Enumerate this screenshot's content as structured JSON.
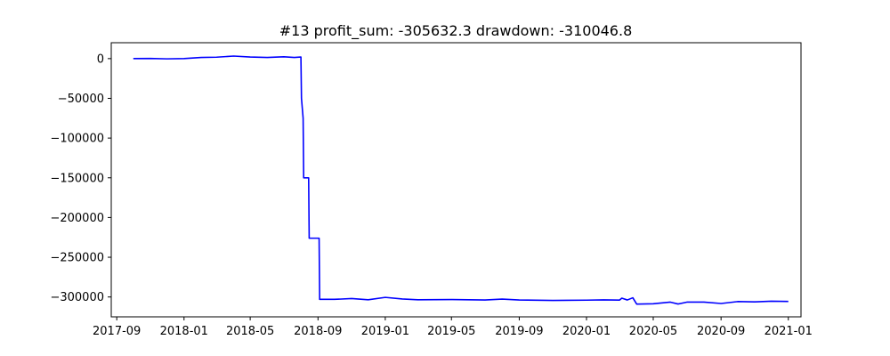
{
  "chart_data": {
    "type": "line",
    "title": "#13   profit_sum: -305632.3 drawdown: -310046.8",
    "xlabel": "",
    "ylabel": "",
    "x_axis": "date",
    "xlim": [
      "2017-08-22",
      "2021-01-24"
    ],
    "ylim": [
      -325000,
      20000
    ],
    "x_ticks": [
      {
        "date": "2017-09-01",
        "label": "2017-09"
      },
      {
        "date": "2018-01-01",
        "label": "2018-01"
      },
      {
        "date": "2018-05-01",
        "label": "2018-05"
      },
      {
        "date": "2018-09-01",
        "label": "2018-09"
      },
      {
        "date": "2019-01-01",
        "label": "2019-01"
      },
      {
        "date": "2019-05-01",
        "label": "2019-05"
      },
      {
        "date": "2019-09-01",
        "label": "2019-09"
      },
      {
        "date": "2020-01-01",
        "label": "2020-01"
      },
      {
        "date": "2020-05-01",
        "label": "2020-05"
      },
      {
        "date": "2020-09-01",
        "label": "2020-09"
      },
      {
        "date": "2021-01-01",
        "label": "2021-01"
      }
    ],
    "y_ticks": [
      {
        "value": 0,
        "label": "0"
      },
      {
        "value": -50000,
        "label": "−50000"
      },
      {
        "value": -100000,
        "label": "−100000"
      },
      {
        "value": -150000,
        "label": "−150000"
      },
      {
        "value": -200000,
        "label": "−200000"
      },
      {
        "value": -250000,
        "label": "−250000"
      },
      {
        "value": -300000,
        "label": "−300000"
      }
    ],
    "grid": false,
    "legend": "none",
    "series": [
      {
        "color": "#0000ff",
        "points": [
          [
            "2017-10-01",
            0
          ],
          [
            "2017-11-01",
            200
          ],
          [
            "2017-12-01",
            -300
          ],
          [
            "2018-01-01",
            0
          ],
          [
            "2018-02-01",
            1500
          ],
          [
            "2018-03-01",
            1800
          ],
          [
            "2018-04-01",
            3200
          ],
          [
            "2018-05-01",
            2000
          ],
          [
            "2018-06-01",
            1500
          ],
          [
            "2018-07-01",
            2300
          ],
          [
            "2018-07-20",
            1500
          ],
          [
            "2018-08-01",
            2000
          ],
          [
            "2018-08-02",
            -50000
          ],
          [
            "2018-08-05",
            -75000
          ],
          [
            "2018-08-06",
            -150000
          ],
          [
            "2018-08-15",
            -150000
          ],
          [
            "2018-08-16",
            -226000
          ],
          [
            "2018-09-03",
            -226000
          ],
          [
            "2018-09-04",
            -303000
          ],
          [
            "2018-10-01",
            -303000
          ],
          [
            "2018-11-01",
            -302000
          ],
          [
            "2018-12-01",
            -303500
          ],
          [
            "2019-01-01",
            -300500
          ],
          [
            "2019-02-01",
            -302500
          ],
          [
            "2019-03-01",
            -303500
          ],
          [
            "2019-05-01",
            -303200
          ],
          [
            "2019-07-01",
            -303800
          ],
          [
            "2019-08-01",
            -302700
          ],
          [
            "2019-09-01",
            -303800
          ],
          [
            "2019-11-01",
            -304300
          ],
          [
            "2020-01-01",
            -304000
          ],
          [
            "2020-02-01",
            -303600
          ],
          [
            "2020-03-01",
            -303900
          ],
          [
            "2020-03-05",
            -301500
          ],
          [
            "2020-03-15",
            -303800
          ],
          [
            "2020-03-25",
            -301000
          ],
          [
            "2020-04-01",
            -309000
          ],
          [
            "2020-05-01",
            -308500
          ],
          [
            "2020-06-01",
            -306500
          ],
          [
            "2020-06-15",
            -308800
          ],
          [
            "2020-07-01",
            -306500
          ],
          [
            "2020-08-01",
            -306500
          ],
          [
            "2020-09-01",
            -308200
          ],
          [
            "2020-10-01",
            -305800
          ],
          [
            "2020-11-01",
            -306200
          ],
          [
            "2020-12-01",
            -305300
          ],
          [
            "2021-01-01",
            -305632.3
          ]
        ]
      }
    ]
  }
}
